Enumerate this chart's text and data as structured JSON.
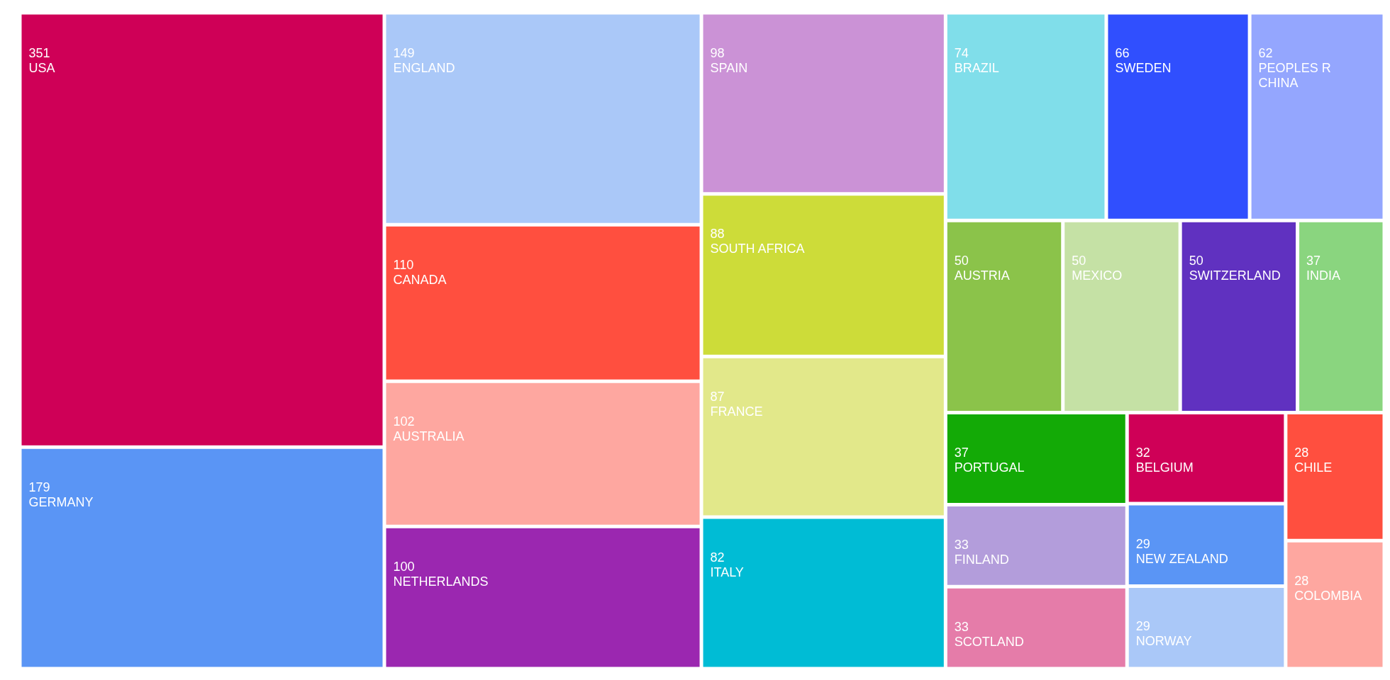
{
  "chart_data": {
    "type": "other",
    "data_labels": true,
    "categories": [
      "USA",
      "GERMANY",
      "ENGLAND",
      "CANADA",
      "AUSTRALIA",
      "NETHERLANDS",
      "SPAIN",
      "SOUTH AFRICA",
      "FRANCE",
      "ITALY",
      "BRAZIL",
      "SWEDEN",
      "PEOPLES R CHINA",
      "AUSTRIA",
      "MEXICO",
      "SWITZERLAND",
      "INDIA",
      "PORTUGAL",
      "FINLAND",
      "SCOTLAND",
      "BELGIUM",
      "NEW ZEALAND",
      "NORWAY",
      "CHILE",
      "COLOMBIA"
    ],
    "values": [
      351,
      179,
      149,
      110,
      102,
      100,
      98,
      88,
      87,
      82,
      74,
      66,
      62,
      50,
      50,
      50,
      37,
      37,
      33,
      33,
      32,
      29,
      29,
      28,
      28
    ],
    "colors": [
      "#cf0057",
      "#5a95f5",
      "#aac8f8",
      "#ff4f3f",
      "#fea7a0",
      "#9b27b0",
      "#cb92d6",
      "#cddc39",
      "#e2e88a",
      "#00bcd5",
      "#80deea",
      "#304ffe",
      "#94a6fe",
      "#8bc34a",
      "#c5e1a5",
      "#6031c0",
      "#8ad57f",
      "#13aa06",
      "#b39ddb",
      "#e57ca9",
      "#cf0057",
      "#5a95f5",
      "#aac8f8",
      "#ff4f3f",
      "#fea7a0"
    ]
  }
}
